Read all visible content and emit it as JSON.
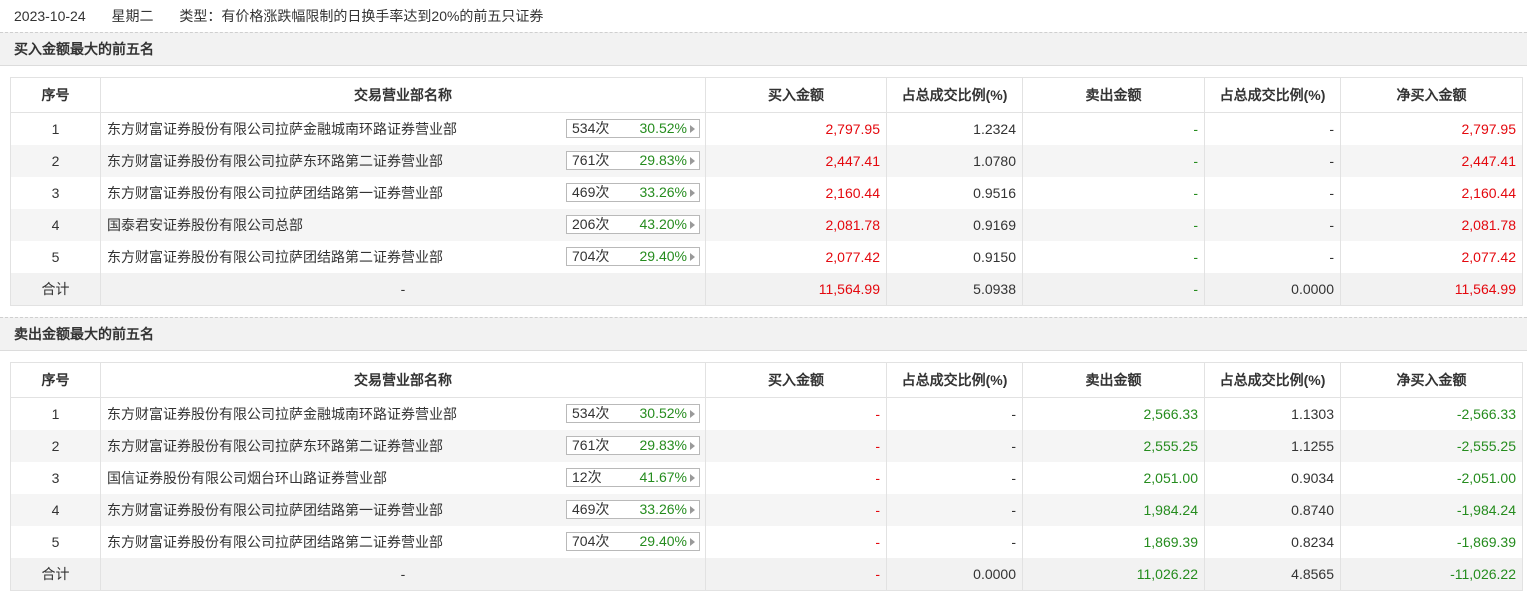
{
  "header": {
    "date": "2023-10-24",
    "weekday": "星期二",
    "type_text": "类型：有价格涨跌幅限制的日换手率达到20%的前五只证券"
  },
  "columns": [
    "序号",
    "交易营业部名称",
    "买入金额",
    "占总成交比例(%)",
    "卖出金额",
    "占总成交比例(%)",
    "净买入金额"
  ],
  "colors": {
    "up": "#e4080e",
    "down": "#258c1e"
  },
  "buy_section": {
    "title": "买入金额最大的前五名",
    "rows": [
      {
        "idx": "1",
        "name": "东方财富证券股份有限公司拉萨金融城南环路证券营业部",
        "times": "534次",
        "rate": "30.52%",
        "buy": "2,797.95",
        "buy_pct": "1.2324",
        "sell": "-",
        "sell_pct": "-",
        "net": "2,797.95"
      },
      {
        "idx": "2",
        "name": "东方财富证券股份有限公司拉萨东环路第二证券营业部",
        "times": "761次",
        "rate": "29.83%",
        "buy": "2,447.41",
        "buy_pct": "1.0780",
        "sell": "-",
        "sell_pct": "-",
        "net": "2,447.41"
      },
      {
        "idx": "3",
        "name": "东方财富证券股份有限公司拉萨团结路第一证券营业部",
        "times": "469次",
        "rate": "33.26%",
        "buy": "2,160.44",
        "buy_pct": "0.9516",
        "sell": "-",
        "sell_pct": "-",
        "net": "2,160.44"
      },
      {
        "idx": "4",
        "name": "国泰君安证券股份有限公司总部",
        "times": "206次",
        "rate": "43.20%",
        "buy": "2,081.78",
        "buy_pct": "0.9169",
        "sell": "-",
        "sell_pct": "-",
        "net": "2,081.78"
      },
      {
        "idx": "5",
        "name": "东方财富证券股份有限公司拉萨团结路第二证券营业部",
        "times": "704次",
        "rate": "29.40%",
        "buy": "2,077.42",
        "buy_pct": "0.9150",
        "sell": "-",
        "sell_pct": "-",
        "net": "2,077.42"
      }
    ],
    "total": {
      "label": "合计",
      "name": "-",
      "buy": "11,564.99",
      "buy_pct": "5.0938",
      "sell": "-",
      "sell_pct": "0.0000",
      "net": "11,564.99"
    }
  },
  "sell_section": {
    "title": "卖出金额最大的前五名",
    "rows": [
      {
        "idx": "1",
        "name": "东方财富证券股份有限公司拉萨金融城南环路证券营业部",
        "times": "534次",
        "rate": "30.52%",
        "buy": "-",
        "buy_pct": "-",
        "sell": "2,566.33",
        "sell_pct": "1.1303",
        "net": "-2,566.33"
      },
      {
        "idx": "2",
        "name": "东方财富证券股份有限公司拉萨东环路第二证券营业部",
        "times": "761次",
        "rate": "29.83%",
        "buy": "-",
        "buy_pct": "-",
        "sell": "2,555.25",
        "sell_pct": "1.1255",
        "net": "-2,555.25"
      },
      {
        "idx": "3",
        "name": "国信证券股份有限公司烟台环山路证券营业部",
        "times": "12次",
        "rate": "41.67%",
        "buy": "-",
        "buy_pct": "-",
        "sell": "2,051.00",
        "sell_pct": "0.9034",
        "net": "-2,051.00"
      },
      {
        "idx": "4",
        "name": "东方财富证券股份有限公司拉萨团结路第一证券营业部",
        "times": "469次",
        "rate": "33.26%",
        "buy": "-",
        "buy_pct": "-",
        "sell": "1,984.24",
        "sell_pct": "0.8740",
        "net": "-1,984.24"
      },
      {
        "idx": "5",
        "name": "东方财富证券股份有限公司拉萨团结路第二证券营业部",
        "times": "704次",
        "rate": "29.40%",
        "buy": "-",
        "buy_pct": "-",
        "sell": "1,869.39",
        "sell_pct": "0.8234",
        "net": "-1,869.39"
      }
    ],
    "total": {
      "label": "合计",
      "name": "-",
      "buy": "-",
      "buy_pct": "0.0000",
      "sell": "11,026.22",
      "sell_pct": "4.8565",
      "net": "-11,026.22"
    }
  }
}
